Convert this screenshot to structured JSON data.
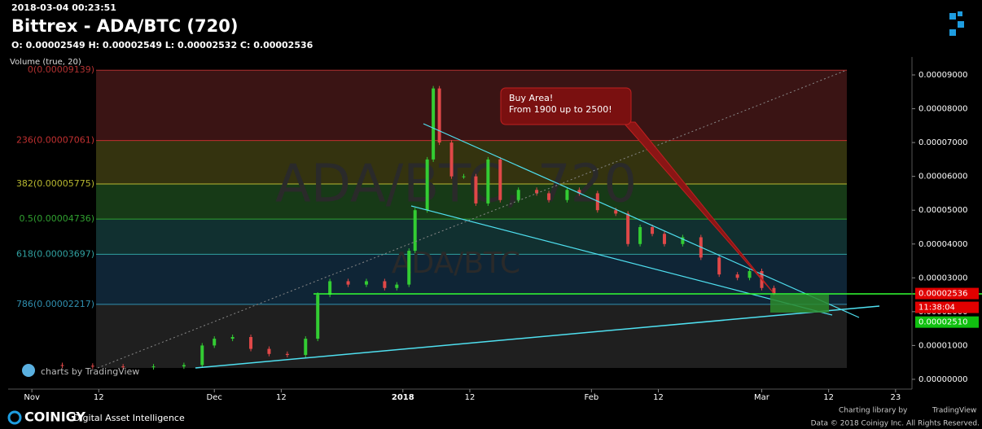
{
  "header": {
    "timestamp": "2018-03-04 00:23:51",
    "title": "Bittrex - ADA/BTC (720)",
    "ohlc": "O: 0.00002549 H: 0.00002549 L: 0.00002532 C: 0.00002536",
    "volume_label": "Volume (true, 20)"
  },
  "chart_data": {
    "type": "candlestick",
    "watermark": "ADA/BTC, 720",
    "watermark_small": "ADA/BTC",
    "annotation": "Buy Area!\nFrom 1900 up to 2500!",
    "credit": "charts by TradingView",
    "up_color": "#33cc33",
    "down_color": "#e04848",
    "x": [
      0,
      5,
      10,
      15,
      20,
      25,
      28,
      30,
      33,
      36,
      39,
      42,
      45,
      47,
      49,
      52,
      55,
      58,
      60,
      62,
      63,
      65,
      66,
      67,
      69,
      71,
      73,
      75,
      77,
      80,
      83,
      85,
      88,
      90,
      93,
      96,
      98,
      100,
      102,
      104,
      107,
      110,
      113,
      116,
      118,
      120,
      122
    ],
    "close": [
      4.2e-06,
      4e-06,
      3.8e-06,
      3.6e-06,
      3.8e-06,
      4.2e-06,
      1e-05,
      1.2e-05,
      1.25e-05,
      9e-06,
      7.5e-06,
      7.2e-06,
      1.2e-05,
      2.5e-05,
      2.9e-05,
      2.8e-05,
      2.9e-05,
      2.7e-05,
      2.8e-05,
      3.8e-05,
      5e-05,
      6.5e-05,
      8.6e-05,
      7e-05,
      6e-05,
      6e-05,
      5.2e-05,
      6.5e-05,
      5.3e-05,
      5.6e-05,
      5.5e-05,
      5.3e-05,
      5.6e-05,
      5.5e-05,
      5e-05,
      4.9e-05,
      4e-05,
      4.5e-05,
      4.3e-05,
      4e-05,
      4.2e-05,
      3.6e-05,
      3.1e-05,
      3e-05,
      3.2e-05,
      2.7e-05,
      2.54e-05
    ],
    "xlim": [
      -3.9,
      144.7
    ],
    "xticks": [
      {
        "value": 0,
        "label": "Nov"
      },
      {
        "value": 11,
        "label": "12"
      },
      {
        "value": 30,
        "label": "Dec"
      },
      {
        "value": 41,
        "label": "12"
      },
      {
        "value": 61,
        "label": "2018"
      },
      {
        "value": 72,
        "label": "12"
      },
      {
        "value": 92,
        "label": "Feb"
      },
      {
        "value": 103,
        "label": "12"
      },
      {
        "value": 120,
        "label": "Mar"
      },
      {
        "value": 131,
        "label": "12"
      },
      {
        "value": 142,
        "label": "23"
      }
    ],
    "ylim": [
      -2.9e-06,
      9.53e-05
    ],
    "yticks": [
      {
        "value": 0,
        "label": "0.00000000"
      },
      {
        "value": 1e-05,
        "label": "0.00001000"
      },
      {
        "value": 2e-05,
        "label": "0.00002000"
      },
      {
        "value": 3e-05,
        "label": "0.00003000"
      },
      {
        "value": 4e-05,
        "label": "0.00004000"
      },
      {
        "value": 5e-05,
        "label": "0.00005000"
      },
      {
        "value": 6e-05,
        "label": "0.00006000"
      },
      {
        "value": 7e-05,
        "label": "0.00007000"
      },
      {
        "value": 8e-05,
        "label": "0.00008000"
      },
      {
        "value": 9e-05,
        "label": "0.00009000"
      }
    ],
    "fib_levels": [
      {
        "value": 9.139e-05,
        "label": "0(0.00009139)",
        "color": "#b03030",
        "fill": "#3a1414"
      },
      {
        "value": 7.061e-05,
        "label": "236(0.00007061)",
        "color": "#c03030",
        "fill": "#34330f"
      },
      {
        "value": 5.775e-05,
        "label": "382(0.00005775)",
        "color": "#b8b830",
        "fill": "#173a17"
      },
      {
        "value": 4.736e-05,
        "label": "0.5(0.00004736)",
        "color": "#30a030",
        "fill": "#113030"
      },
      {
        "value": 3.697e-05,
        "label": "618(0.00003697)",
        "color": "#30a0a0",
        "fill": "#0f2536"
      },
      {
        "value": 2.217e-05,
        "label": "786(0.00002217)",
        "color": "#3090b0",
        "fill": "#1f1f1f"
      }
    ],
    "price_labels": [
      {
        "value": 2.536e-05,
        "label": "0.00002536",
        "color": "#e00000"
      },
      {
        "value": 2.536e-05,
        "label": "11:38:04",
        "color": "#e00000"
      },
      {
        "value": 2.51e-05,
        "label": "0.00002510",
        "color": "#10c010"
      }
    ]
  },
  "footer": {
    "brand": "COINIGY",
    "tagline": "Digital Asset Intelligence",
    "charting": "Charting library by",
    "tv": "TradingView",
    "copyright": "Data © 2018 Coinigy Inc. All Rights Reserved."
  }
}
